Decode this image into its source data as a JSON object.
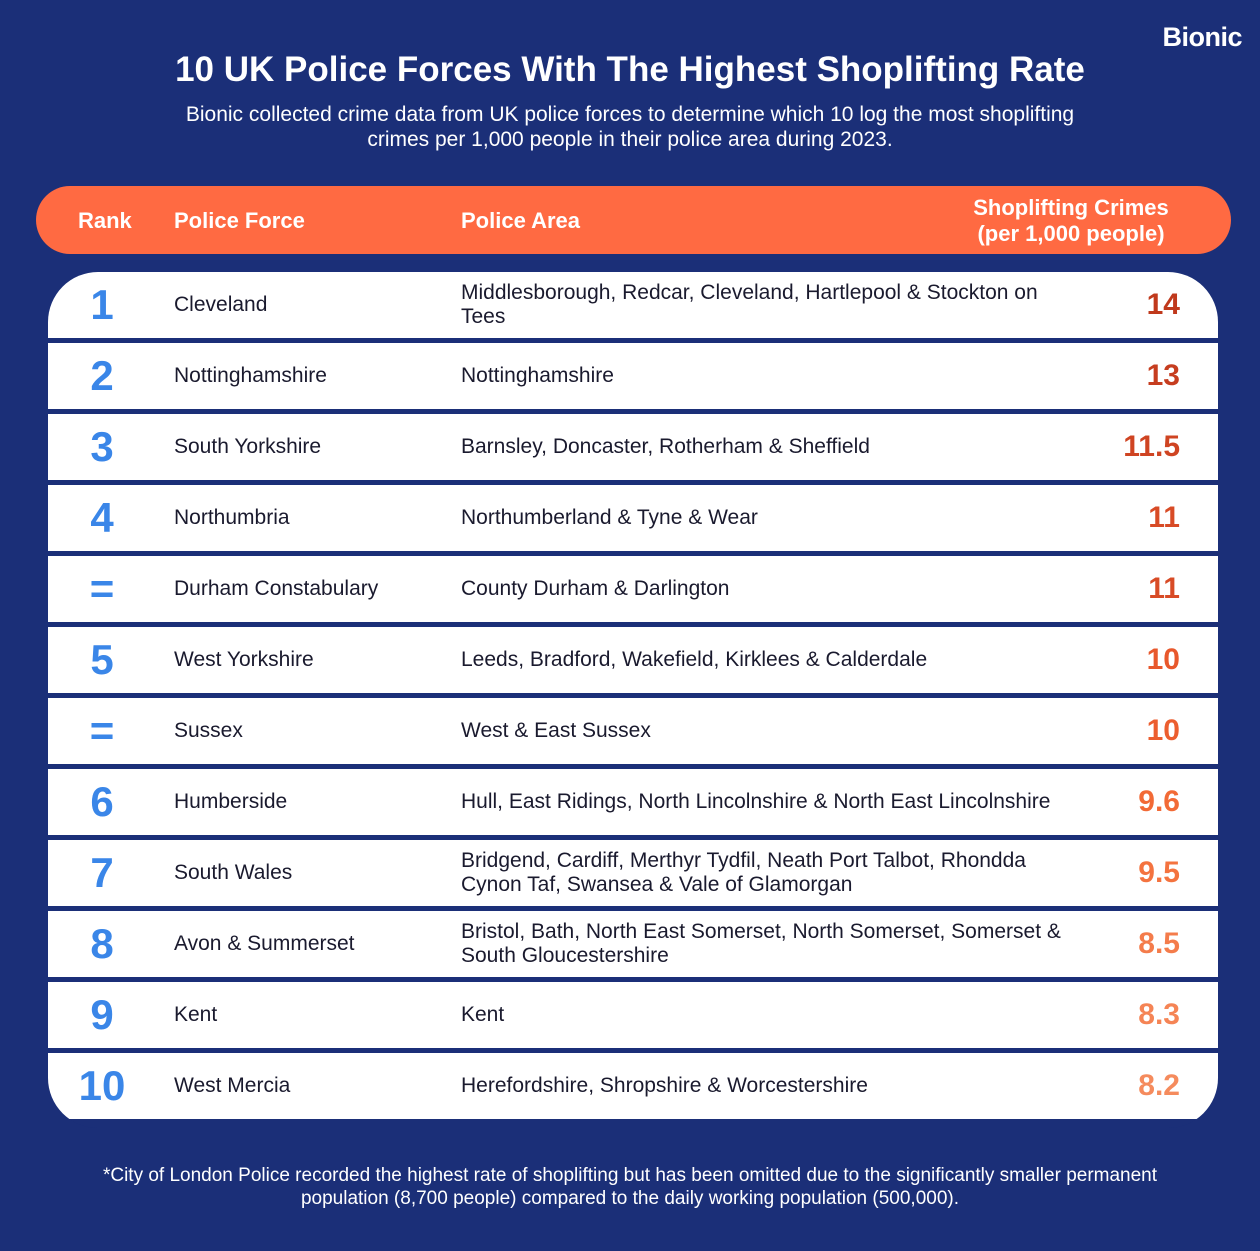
{
  "brand": "Bionic",
  "title": "10 UK Police Forces With The Highest Shoplifting Rate",
  "subtitle": "Bionic collected crime data from UK police forces to determine which 10 log the most shoplifting crimes per 1,000 people in their police area during 2023.",
  "chart_data": {
    "type": "table",
    "columns": [
      "Rank",
      "Police Force",
      "Police Area",
      "Shoplifting Crimes (per 1,000 people)"
    ],
    "rows": [
      {
        "rank": "1",
        "force": "Cleveland",
        "area": "Middlesborough, Redcar, Cleveland, Hartlepool & Stockton on Tees",
        "value": "14",
        "color": "#c0391c"
      },
      {
        "rank": "2",
        "force": "Nottinghamshire",
        "area": "Nottinghamshire",
        "value": "13",
        "color": "#c63d1f"
      },
      {
        "rank": "3",
        "force": "South Yorkshire",
        "area": "Barnsley, Doncaster, Rotherham & Sheffield",
        "value": "11.5",
        "color": "#cf4422"
      },
      {
        "rank": "4",
        "force": "Northumbria",
        "area": "Northumberland & Tyne & Wear",
        "value": "11",
        "color": "#d84b26"
      },
      {
        "rank": "=",
        "force": "Durham Constabulary",
        "area": "County Durham & Darlington",
        "value": "11",
        "color": "#d84b26"
      },
      {
        "rank": "5",
        "force": "West Yorkshire",
        "area": "Leeds, Bradford, Wakefield, Kirklees & Calderdale",
        "value": "10",
        "color": "#e8582c"
      },
      {
        "rank": "=",
        "force": "Sussex",
        "area": "West & East Sussex",
        "value": "10",
        "color": "#ec5e2f"
      },
      {
        "rank": "6",
        "force": "Humberside",
        "area": "Hull, East Ridings, North Lincolnshire & North East Lincolnshire",
        "value": "9.6",
        "color": "#f26a36"
      },
      {
        "rank": "7",
        "force": "South Wales",
        "area": "Bridgend, Cardiff, Merthyr Tydfil, Neath Port Talbot, Rhondda Cynon Taf, Swansea & Vale of Glamorgan",
        "value": "9.5",
        "color": "#f4733f"
      },
      {
        "rank": "8",
        "force": "Avon & Summerset",
        "area": "Bristol, Bath, North East Somerset, North Somerset, Somerset & South Gloucestershire",
        "value": "8.5",
        "color": "#f47c4b"
      },
      {
        "rank": "9",
        "force": "Kent",
        "area": "Kent",
        "value": "8.3",
        "color": "#f58455"
      },
      {
        "rank": "10",
        "force": "West Mercia",
        "area": "Herefordshire, Shropshire & Worcestershire",
        "value": "8.2",
        "color": "#f58b5d"
      }
    ]
  },
  "header": {
    "rank": "Rank",
    "force": "Police Force",
    "area": "Police Area",
    "rate_line1": "Shoplifting Crimes",
    "rate_line2": "(per 1,000 people)"
  },
  "footnote": "*City of London Police recorded the highest rate of shoplifting but has been omitted due to the significantly smaller permanent population (8,700 people) compared to the daily working population (500,000)."
}
